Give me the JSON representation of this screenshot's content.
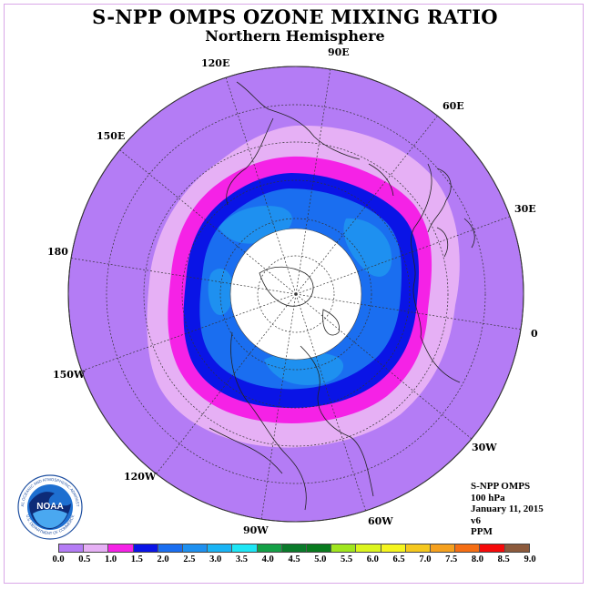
{
  "title": "S-NPP OMPS OZONE MIXING RATIO",
  "subtitle": "Northern Hemisphere",
  "info": {
    "instrument": "S-NPP OMPS",
    "level": "100 hPa",
    "date": "January 11, 2015",
    "version": "v6",
    "units": "PPM"
  },
  "logo": {
    "text": "NOAA",
    "ring_text": "NATIONAL OCEANIC AND ATMOSPHERIC ADMINISTRATION",
    "bottom_text": "U.S. DEPARTMENT OF COMMERCE",
    "icon": "noaa-logo-icon"
  },
  "longitude_labels": [
    "90E",
    "60E",
    "30E",
    "0",
    "30W",
    "60W",
    "90W",
    "120W",
    "150W",
    "180",
    "150E",
    "120E"
  ],
  "colorbar": {
    "colors": [
      "#b47cf5",
      "#e6b0f5",
      "#f522e6",
      "#0a14e6",
      "#1a6ef0",
      "#1e90f0",
      "#19b4f5",
      "#1ee6f5",
      "#14a046",
      "#0a7a2a",
      "#087a1e",
      "#a0e61e",
      "#dcf51e",
      "#f5f51e",
      "#f5c81e",
      "#f5a01e",
      "#f56e14",
      "#f50a0a",
      "#8c5a3c"
    ],
    "ticks": [
      "0.0",
      "0.5",
      "1.0",
      "1.5",
      "2.0",
      "2.5",
      "3.0",
      "3.5",
      "4.0",
      "4.5",
      "5.0",
      "5.5",
      "6.0",
      "6.5",
      "7.0",
      "7.5",
      "8.0",
      "8.5",
      "9.0"
    ]
  },
  "map_colors": {
    "background": "#b47cf5",
    "band_05": "#e6b0f5",
    "band_10": "#f522e6",
    "band_15": "#0a14e6",
    "band_20": "#1a6ef0",
    "band_25": "#1e90f0",
    "no_data": "#ffffff"
  }
}
